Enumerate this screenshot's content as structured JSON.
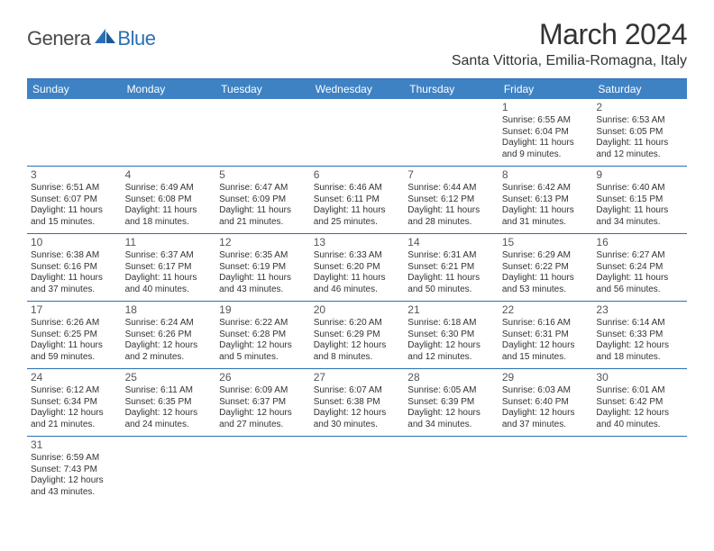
{
  "logo": {
    "text1": "Genera",
    "text2": "Blue"
  },
  "title": "March 2024",
  "location": "Santa Vittoria, Emilia-Romagna, Italy",
  "colors": {
    "header_bg": "#3e82c4",
    "border": "#2a6fb5",
    "logo_blue": "#2a6fb5",
    "text": "#333333"
  },
  "dayNames": [
    "Sunday",
    "Monday",
    "Tuesday",
    "Wednesday",
    "Thursday",
    "Friday",
    "Saturday"
  ],
  "weeks": [
    [
      null,
      null,
      null,
      null,
      null,
      {
        "d": "1",
        "sr": "6:55 AM",
        "ss": "6:04 PM",
        "dl": "11 hours and 9 minutes."
      },
      {
        "d": "2",
        "sr": "6:53 AM",
        "ss": "6:05 PM",
        "dl": "11 hours and 12 minutes."
      }
    ],
    [
      {
        "d": "3",
        "sr": "6:51 AM",
        "ss": "6:07 PM",
        "dl": "11 hours and 15 minutes."
      },
      {
        "d": "4",
        "sr": "6:49 AM",
        "ss": "6:08 PM",
        "dl": "11 hours and 18 minutes."
      },
      {
        "d": "5",
        "sr": "6:47 AM",
        "ss": "6:09 PM",
        "dl": "11 hours and 21 minutes."
      },
      {
        "d": "6",
        "sr": "6:46 AM",
        "ss": "6:11 PM",
        "dl": "11 hours and 25 minutes."
      },
      {
        "d": "7",
        "sr": "6:44 AM",
        "ss": "6:12 PM",
        "dl": "11 hours and 28 minutes."
      },
      {
        "d": "8",
        "sr": "6:42 AM",
        "ss": "6:13 PM",
        "dl": "11 hours and 31 minutes."
      },
      {
        "d": "9",
        "sr": "6:40 AM",
        "ss": "6:15 PM",
        "dl": "11 hours and 34 minutes."
      }
    ],
    [
      {
        "d": "10",
        "sr": "6:38 AM",
        "ss": "6:16 PM",
        "dl": "11 hours and 37 minutes."
      },
      {
        "d": "11",
        "sr": "6:37 AM",
        "ss": "6:17 PM",
        "dl": "11 hours and 40 minutes."
      },
      {
        "d": "12",
        "sr": "6:35 AM",
        "ss": "6:19 PM",
        "dl": "11 hours and 43 minutes."
      },
      {
        "d": "13",
        "sr": "6:33 AM",
        "ss": "6:20 PM",
        "dl": "11 hours and 46 minutes."
      },
      {
        "d": "14",
        "sr": "6:31 AM",
        "ss": "6:21 PM",
        "dl": "11 hours and 50 minutes."
      },
      {
        "d": "15",
        "sr": "6:29 AM",
        "ss": "6:22 PM",
        "dl": "11 hours and 53 minutes."
      },
      {
        "d": "16",
        "sr": "6:27 AM",
        "ss": "6:24 PM",
        "dl": "11 hours and 56 minutes."
      }
    ],
    [
      {
        "d": "17",
        "sr": "6:26 AM",
        "ss": "6:25 PM",
        "dl": "11 hours and 59 minutes."
      },
      {
        "d": "18",
        "sr": "6:24 AM",
        "ss": "6:26 PM",
        "dl": "12 hours and 2 minutes."
      },
      {
        "d": "19",
        "sr": "6:22 AM",
        "ss": "6:28 PM",
        "dl": "12 hours and 5 minutes."
      },
      {
        "d": "20",
        "sr": "6:20 AM",
        "ss": "6:29 PM",
        "dl": "12 hours and 8 minutes."
      },
      {
        "d": "21",
        "sr": "6:18 AM",
        "ss": "6:30 PM",
        "dl": "12 hours and 12 minutes."
      },
      {
        "d": "22",
        "sr": "6:16 AM",
        "ss": "6:31 PM",
        "dl": "12 hours and 15 minutes."
      },
      {
        "d": "23",
        "sr": "6:14 AM",
        "ss": "6:33 PM",
        "dl": "12 hours and 18 minutes."
      }
    ],
    [
      {
        "d": "24",
        "sr": "6:12 AM",
        "ss": "6:34 PM",
        "dl": "12 hours and 21 minutes."
      },
      {
        "d": "25",
        "sr": "6:11 AM",
        "ss": "6:35 PM",
        "dl": "12 hours and 24 minutes."
      },
      {
        "d": "26",
        "sr": "6:09 AM",
        "ss": "6:37 PM",
        "dl": "12 hours and 27 minutes."
      },
      {
        "d": "27",
        "sr": "6:07 AM",
        "ss": "6:38 PM",
        "dl": "12 hours and 30 minutes."
      },
      {
        "d": "28",
        "sr": "6:05 AM",
        "ss": "6:39 PM",
        "dl": "12 hours and 34 minutes."
      },
      {
        "d": "29",
        "sr": "6:03 AM",
        "ss": "6:40 PM",
        "dl": "12 hours and 37 minutes."
      },
      {
        "d": "30",
        "sr": "6:01 AM",
        "ss": "6:42 PM",
        "dl": "12 hours and 40 minutes."
      }
    ],
    [
      {
        "d": "31",
        "sr": "6:59 AM",
        "ss": "7:43 PM",
        "dl": "12 hours and 43 minutes."
      },
      null,
      null,
      null,
      null,
      null,
      null
    ]
  ],
  "labels": {
    "sunrise": "Sunrise:",
    "sunset": "Sunset:",
    "daylight": "Daylight:"
  }
}
